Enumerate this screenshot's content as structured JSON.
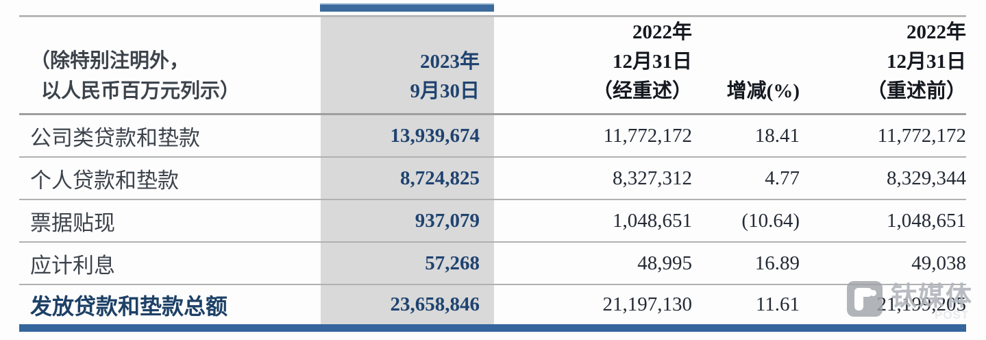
{
  "table": {
    "note": {
      "line1": "（除特别注明外，",
      "line2": "以人民币百万元列示）"
    },
    "header": {
      "c2023": {
        "line1": "2023年",
        "line2": "9月30日"
      },
      "c2022_restated": {
        "line1": "2022年",
        "line2": "12月31日",
        "line3": "（经重述）"
      },
      "change": "增减(%)",
      "c2022_before": {
        "line1": "2022年",
        "line2": "12月31日",
        "line3": "（重述前）"
      }
    },
    "rows": [
      {
        "label": "公司类贷款和垫款",
        "v2023": "13,939,674",
        "v2022_restated": "11,772,172",
        "change": "18.41",
        "v2022_before": "11,772,172"
      },
      {
        "label": "个人贷款和垫款",
        "v2023": "8,724,825",
        "v2022_restated": "8,327,312",
        "change": "4.77",
        "v2022_before": "8,329,344"
      },
      {
        "label": "票据贴现",
        "v2023": "937,079",
        "v2022_restated": "1,048,651",
        "change": "(10.64)",
        "v2022_before": "1,048,651"
      },
      {
        "label": "应计利息",
        "v2023": "57,268",
        "v2022_restated": "48,995",
        "change": "16.89",
        "v2022_before": "49,038"
      }
    ],
    "total": {
      "label": "发放贷款和垫款总额",
      "v2023": "23,658,846",
      "v2022_restated": "21,197,130",
      "change": "11.61",
      "v2022_before": "21,199,205"
    }
  },
  "watermark": {
    "text": "钛媒体",
    "sub": "POST"
  },
  "colors": {
    "accent_blue": "#3c6a9d",
    "bottom_bar_blue": "#34659c",
    "highlight_column_gray": "#d9d9d9",
    "navy_text": "#1f4370",
    "body_text": "#232a35",
    "line_gray": "#b0b0b0"
  }
}
